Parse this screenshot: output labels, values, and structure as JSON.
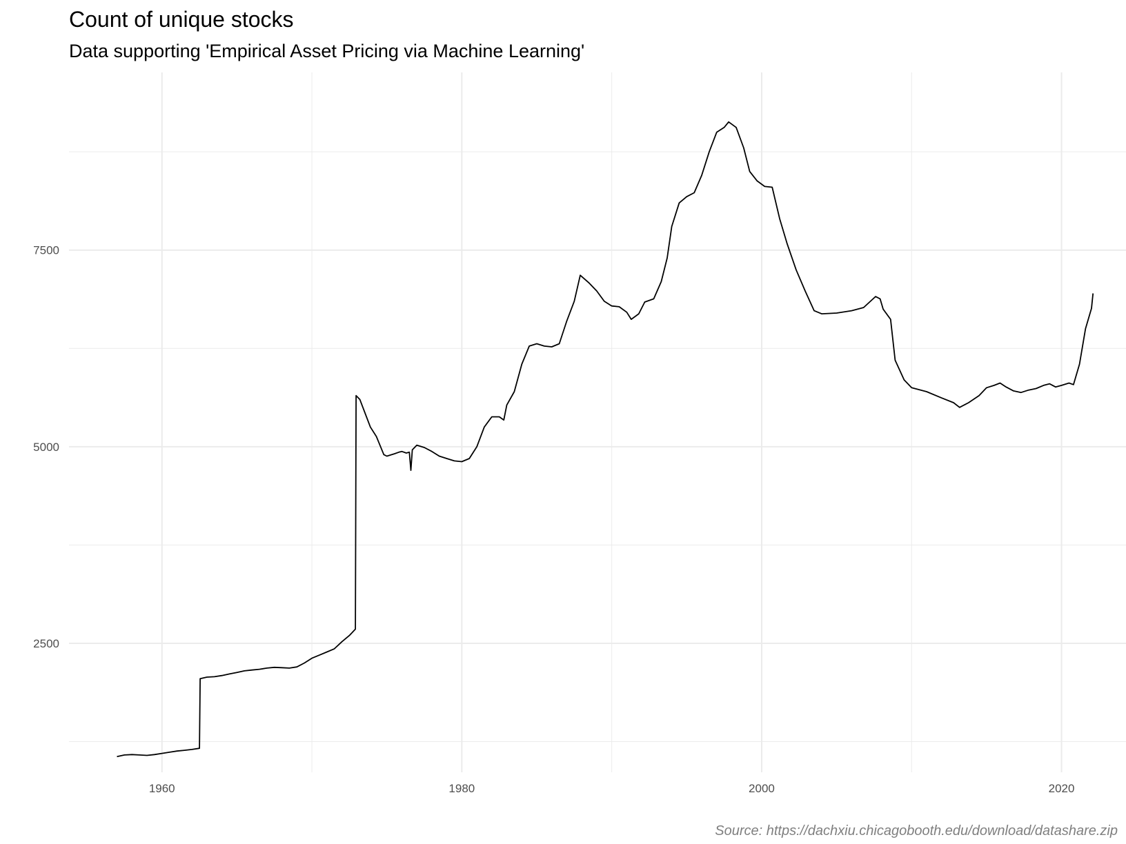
{
  "chart_data": {
    "type": "line",
    "title": "Count of unique stocks",
    "subtitle": "Data supporting 'Empirical Asset Pricing via Machine Learning'",
    "caption": "Source: https://dachxiu.chicagobooth.edu/download/datashare.zip",
    "xlabel": "",
    "ylabel": "",
    "xlim": [
      1953.8,
      2024.3
    ],
    "ylim": [
      860,
      9760
    ],
    "x_ticks": [
      1960,
      1980,
      2000,
      2020
    ],
    "y_ticks": [
      2500,
      5000,
      7500
    ],
    "grid": true,
    "legend": "none",
    "line_color": "#000000",
    "grid_color": "#ebebeb",
    "series": [
      {
        "points": [
          [
            1957.0,
            1060
          ],
          [
            1957.5,
            1080
          ],
          [
            1958.0,
            1085
          ],
          [
            1958.5,
            1080
          ],
          [
            1959.0,
            1075
          ],
          [
            1959.5,
            1085
          ],
          [
            1960.0,
            1100
          ],
          [
            1960.5,
            1115
          ],
          [
            1961.0,
            1130
          ],
          [
            1961.5,
            1140
          ],
          [
            1962.0,
            1150
          ],
          [
            1962.5,
            1165
          ],
          [
            1962.55,
            2050
          ],
          [
            1963.0,
            2070
          ],
          [
            1963.5,
            2075
          ],
          [
            1964.0,
            2090
          ],
          [
            1964.5,
            2110
          ],
          [
            1965.0,
            2130
          ],
          [
            1965.5,
            2150
          ],
          [
            1966.0,
            2160
          ],
          [
            1966.5,
            2170
          ],
          [
            1967.0,
            2185
          ],
          [
            1967.5,
            2195
          ],
          [
            1968.0,
            2190
          ],
          [
            1968.5,
            2185
          ],
          [
            1969.0,
            2200
          ],
          [
            1969.5,
            2250
          ],
          [
            1970.0,
            2310
          ],
          [
            1970.5,
            2350
          ],
          [
            1971.0,
            2390
          ],
          [
            1971.5,
            2430
          ],
          [
            1972.0,
            2520
          ],
          [
            1972.5,
            2600
          ],
          [
            1972.9,
            2680
          ],
          [
            1972.95,
            5650
          ],
          [
            1973.2,
            5600
          ],
          [
            1973.5,
            5450
          ],
          [
            1973.9,
            5250
          ],
          [
            1974.3,
            5130
          ],
          [
            1974.8,
            4900
          ],
          [
            1975.0,
            4880
          ],
          [
            1975.5,
            4910
          ],
          [
            1975.8,
            4930
          ],
          [
            1976.0,
            4940
          ],
          [
            1976.3,
            4920
          ],
          [
            1976.5,
            4930
          ],
          [
            1976.6,
            4700
          ],
          [
            1976.7,
            4960
          ],
          [
            1977.0,
            5020
          ],
          [
            1977.5,
            4990
          ],
          [
            1978.0,
            4940
          ],
          [
            1978.5,
            4880
          ],
          [
            1979.0,
            4850
          ],
          [
            1979.5,
            4820
          ],
          [
            1980.0,
            4810
          ],
          [
            1980.5,
            4850
          ],
          [
            1981.0,
            5000
          ],
          [
            1981.5,
            5250
          ],
          [
            1982.0,
            5380
          ],
          [
            1982.5,
            5380
          ],
          [
            1982.8,
            5340
          ],
          [
            1983.0,
            5530
          ],
          [
            1983.5,
            5700
          ],
          [
            1984.0,
            6050
          ],
          [
            1984.5,
            6280
          ],
          [
            1985.0,
            6310
          ],
          [
            1985.5,
            6280
          ],
          [
            1986.0,
            6270
          ],
          [
            1986.5,
            6310
          ],
          [
            1987.0,
            6600
          ],
          [
            1987.5,
            6850
          ],
          [
            1987.9,
            7180
          ],
          [
            1988.5,
            7080
          ],
          [
            1989.0,
            6980
          ],
          [
            1989.5,
            6850
          ],
          [
            1990.0,
            6790
          ],
          [
            1990.5,
            6780
          ],
          [
            1991.0,
            6710
          ],
          [
            1991.3,
            6620
          ],
          [
            1991.8,
            6690
          ],
          [
            1992.2,
            6840
          ],
          [
            1992.8,
            6880
          ],
          [
            1993.3,
            7100
          ],
          [
            1993.7,
            7400
          ],
          [
            1994.0,
            7800
          ],
          [
            1994.5,
            8100
          ],
          [
            1995.0,
            8180
          ],
          [
            1995.5,
            8230
          ],
          [
            1996.0,
            8450
          ],
          [
            1996.5,
            8750
          ],
          [
            1997.0,
            9000
          ],
          [
            1997.5,
            9060
          ],
          [
            1997.8,
            9130
          ],
          [
            1998.3,
            9060
          ],
          [
            1998.8,
            8800
          ],
          [
            1999.2,
            8500
          ],
          [
            1999.7,
            8380
          ],
          [
            2000.2,
            8310
          ],
          [
            2000.7,
            8300
          ],
          [
            2001.2,
            7900
          ],
          [
            2001.7,
            7580
          ],
          [
            2002.3,
            7250
          ],
          [
            2002.9,
            6980
          ],
          [
            2003.5,
            6730
          ],
          [
            2004.0,
            6690
          ],
          [
            2005.0,
            6700
          ],
          [
            2006.0,
            6730
          ],
          [
            2006.8,
            6770
          ],
          [
            2007.6,
            6910
          ],
          [
            2007.9,
            6880
          ],
          [
            2008.1,
            6750
          ],
          [
            2008.6,
            6620
          ],
          [
            2008.9,
            6100
          ],
          [
            2009.5,
            5850
          ],
          [
            2010.0,
            5750
          ],
          [
            2011.0,
            5700
          ],
          [
            2012.0,
            5620
          ],
          [
            2012.8,
            5560
          ],
          [
            2013.2,
            5500
          ],
          [
            2013.8,
            5560
          ],
          [
            2014.5,
            5650
          ],
          [
            2015.0,
            5750
          ],
          [
            2015.5,
            5780
          ],
          [
            2015.9,
            5810
          ],
          [
            2016.3,
            5760
          ],
          [
            2016.8,
            5710
          ],
          [
            2017.3,
            5690
          ],
          [
            2017.8,
            5720
          ],
          [
            2018.3,
            5740
          ],
          [
            2018.8,
            5780
          ],
          [
            2019.2,
            5800
          ],
          [
            2019.6,
            5760
          ],
          [
            2020.0,
            5780
          ],
          [
            2020.5,
            5810
          ],
          [
            2020.8,
            5790
          ],
          [
            2021.2,
            6050
          ],
          [
            2021.6,
            6500
          ],
          [
            2022.0,
            6760
          ],
          [
            2022.1,
            6950
          ]
        ]
      }
    ]
  }
}
